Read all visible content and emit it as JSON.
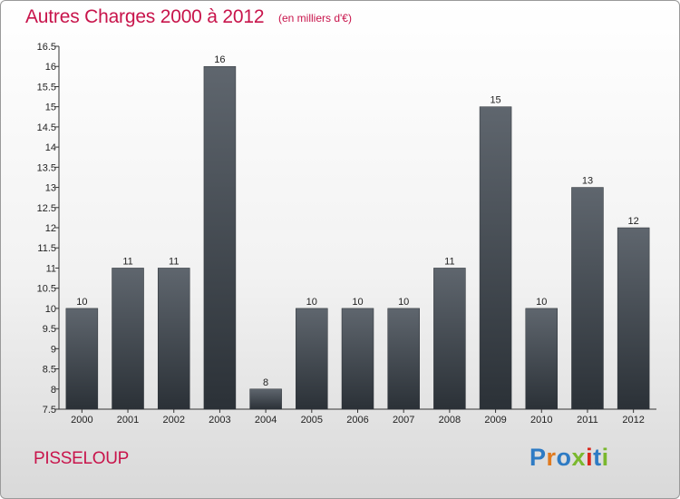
{
  "title": "Autres Charges 2000 à 2012",
  "subtitle": "(en milliers d'€)",
  "commune": "PISSELOUP",
  "logo": {
    "text": "Proxiti",
    "colors": [
      "#2e7bc4",
      "#e07a1f",
      "#2e7bc4",
      "#7ab82e",
      "#d9261c",
      "#2e7bc4",
      "#7ab82e"
    ]
  },
  "chart_data": {
    "type": "bar",
    "categories": [
      "2000",
      "2001",
      "2002",
      "2003",
      "2004",
      "2005",
      "2006",
      "2007",
      "2008",
      "2009",
      "2010",
      "2011",
      "2012"
    ],
    "values": [
      10,
      11,
      11,
      16,
      8,
      10,
      10,
      10,
      11,
      15,
      10,
      13,
      12
    ],
    "value_labels": [
      "10",
      "11",
      "11",
      "16",
      "8",
      "10",
      "10",
      "10",
      "11",
      "15",
      "10",
      "13",
      "12"
    ],
    "yticks": [
      "7.5",
      "8",
      "8.5",
      "9",
      "9.5",
      "10",
      "10.5",
      "11",
      "11.5",
      "12",
      "12.5",
      "13",
      "13.5",
      "14",
      "14.5",
      "15",
      "15.5",
      "16",
      "16.5"
    ],
    "ylim": [
      7.5,
      16.5
    ],
    "grid": false,
    "bar_color": "#3f464d"
  }
}
